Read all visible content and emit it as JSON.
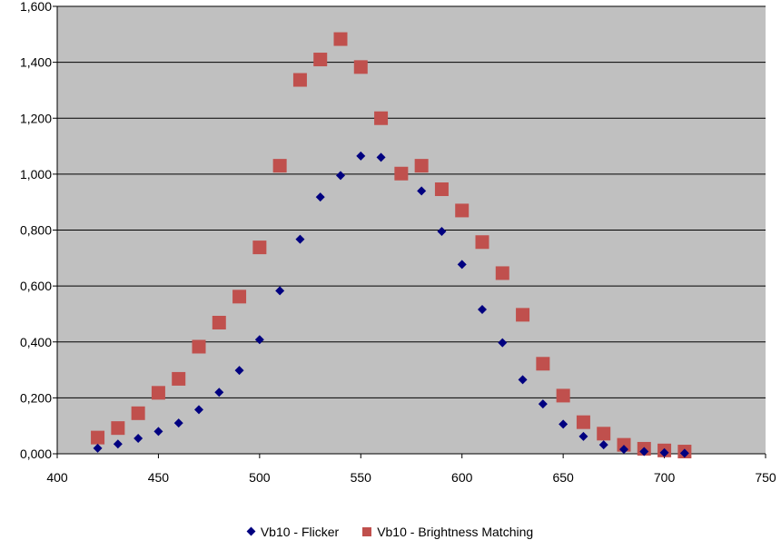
{
  "chart_data": {
    "type": "scatter",
    "title": "",
    "xlabel": "",
    "ylabel": "",
    "xlim": [
      400,
      750
    ],
    "ylim": [
      0,
      1.6
    ],
    "x_ticks": [
      "400",
      "450",
      "500",
      "550",
      "600",
      "650",
      "700",
      "750"
    ],
    "y_ticks": [
      "0,000",
      "0,200",
      "0,400",
      "0,600",
      "0,800",
      "1,000",
      "1,200",
      "1,400",
      "1,600"
    ],
    "grid": "horizontal",
    "plot_background": "#c0c0c0",
    "legend_position": "bottom",
    "series": [
      {
        "name": "Vb10 - Flicker",
        "marker": "diamond",
        "color": "#000080",
        "points": [
          [
            420,
            0.02
          ],
          [
            430,
            0.035
          ],
          [
            440,
            0.055
          ],
          [
            450,
            0.08
          ],
          [
            460,
            0.11
          ],
          [
            470,
            0.158
          ],
          [
            480,
            0.22
          ],
          [
            490,
            0.298
          ],
          [
            500,
            0.408
          ],
          [
            510,
            0.583
          ],
          [
            520,
            0.767
          ],
          [
            530,
            0.918
          ],
          [
            540,
            0.995
          ],
          [
            550,
            1.065
          ],
          [
            560,
            1.06
          ],
          [
            580,
            0.94
          ],
          [
            590,
            0.795
          ],
          [
            600,
            0.677
          ],
          [
            610,
            0.516
          ],
          [
            620,
            0.397
          ],
          [
            630,
            0.265
          ],
          [
            640,
            0.178
          ],
          [
            650,
            0.106
          ],
          [
            660,
            0.062
          ],
          [
            670,
            0.032
          ],
          [
            680,
            0.016
          ],
          [
            690,
            0.008
          ],
          [
            700,
            0.004
          ],
          [
            710,
            0.002
          ]
        ]
      },
      {
        "name": "Vb10 - Brightness Matching",
        "marker": "square",
        "color": "#c0504d",
        "points": [
          [
            420,
            0.058
          ],
          [
            430,
            0.092
          ],
          [
            440,
            0.145
          ],
          [
            450,
            0.218
          ],
          [
            460,
            0.268
          ],
          [
            470,
            0.383
          ],
          [
            480,
            0.469
          ],
          [
            490,
            0.562
          ],
          [
            500,
            0.738
          ],
          [
            510,
            1.03
          ],
          [
            520,
            1.337
          ],
          [
            530,
            1.41
          ],
          [
            540,
            1.483
          ],
          [
            550,
            1.383
          ],
          [
            560,
            1.2
          ],
          [
            570,
            1.002
          ],
          [
            580,
            1.03
          ],
          [
            590,
            0.946
          ],
          [
            600,
            0.87
          ],
          [
            610,
            0.757
          ],
          [
            620,
            0.646
          ],
          [
            630,
            0.497
          ],
          [
            640,
            0.322
          ],
          [
            650,
            0.208
          ],
          [
            660,
            0.113
          ],
          [
            670,
            0.072
          ],
          [
            680,
            0.032
          ],
          [
            690,
            0.018
          ],
          [
            700,
            0.012
          ],
          [
            710,
            0.008
          ]
        ]
      }
    ]
  }
}
